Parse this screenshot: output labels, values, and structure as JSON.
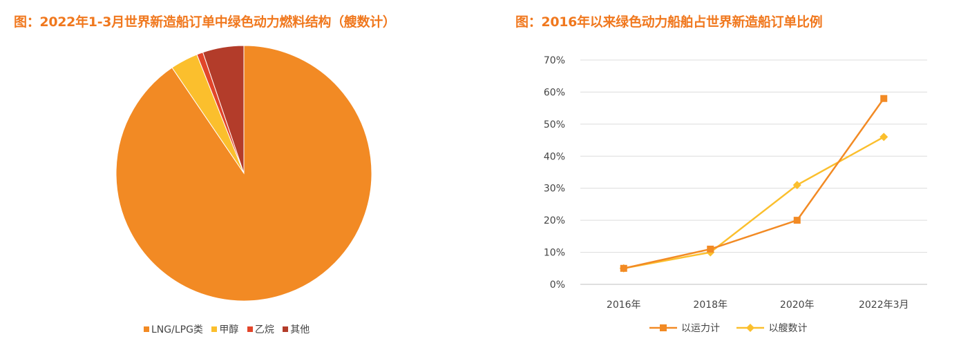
{
  "chart_data": [
    {
      "type": "pie",
      "title": "图：2022年1-3月世界新造船订单中绿色动力燃料结构（艘数计）",
      "categories": [
        "LNG/LPG类",
        "甲醇",
        "乙烷",
        "其他"
      ],
      "values": [
        90.5,
        3.5,
        0.8,
        5.2
      ],
      "colors": [
        "#f28a24",
        "#fbbf2d",
        "#e2452a",
        "#b33c2a"
      ],
      "legend": "bottom"
    },
    {
      "type": "line",
      "title": "图：2016年以来绿色动力船舶占世界新造船订单比例",
      "categories": [
        "2016年",
        "2018年",
        "2020年",
        "2022年3月"
      ],
      "series": [
        {
          "name": "以运力计",
          "values": [
            5,
            11,
            20,
            58
          ],
          "color": "#f28a24",
          "marker": "square"
        },
        {
          "name": "以艘数计",
          "values": [
            5,
            10,
            31,
            46
          ],
          "color": "#fbbf2d",
          "marker": "diamond"
        }
      ],
      "ylim": [
        0,
        70
      ],
      "yticks": [
        "0%",
        "10%",
        "20%",
        "30%",
        "40%",
        "50%",
        "60%",
        "70%"
      ],
      "grid": true,
      "legend": "bottom"
    }
  ]
}
